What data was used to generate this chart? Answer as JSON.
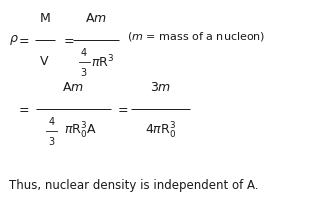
{
  "bg_color": "#ffffff",
  "text_color": "#1a1a1a",
  "figwidth": 3.27,
  "figheight": 2.04,
  "dpi": 100,
  "line3": "Thus, nuclear density is independent of A."
}
